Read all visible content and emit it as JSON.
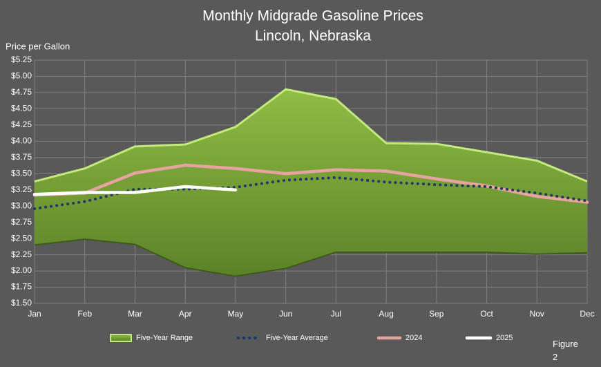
{
  "chart_data": {
    "type": "line",
    "title": "Monthly Midgrade Gasoline Prices",
    "subtitle": "Lincoln, Nebraska",
    "y_label": "Price per Gallon",
    "annotation": "Figure 2",
    "categories": [
      "Jan",
      "Feb",
      "Mar",
      "Apr",
      "May",
      "Jun",
      "Jul",
      "Aug",
      "Sep",
      "Oct",
      "Nov",
      "Dec"
    ],
    "ylim": [
      1.5,
      5.25
    ],
    "yticks": [
      {
        "value": 1.5,
        "label": "$1.50"
      },
      {
        "value": 1.75,
        "label": "$1.75"
      },
      {
        "value": 2,
        "label": "$2.00"
      },
      {
        "value": 2.25,
        "label": "$2.25"
      },
      {
        "value": 2.5,
        "label": "$2.50"
      },
      {
        "value": 2.75,
        "label": "$2.75"
      },
      {
        "value": 3,
        "label": "$3.00"
      },
      {
        "value": 3.25,
        "label": "$3.25"
      },
      {
        "value": 3.5,
        "label": "$3.50"
      },
      {
        "value": 3.75,
        "label": "$3.75"
      },
      {
        "value": 4,
        "label": "$4.00"
      },
      {
        "value": 4.25,
        "label": "$4.25"
      },
      {
        "value": 4.5,
        "label": "$4.50"
      },
      {
        "value": 4.75,
        "label": "$4.75"
      },
      {
        "value": 5,
        "label": "$5.00"
      },
      {
        "value": 5.25,
        "label": "$5.25"
      }
    ],
    "grid": true,
    "series": [
      {
        "name": "Five-Year Range",
        "style": "band",
        "color": "#7fa83c",
        "values": [
          3.38,
          3.58,
          3.92,
          3.95,
          4.22,
          4.8,
          4.65,
          3.97,
          3.96,
          3.83,
          3.7,
          3.38
        ],
        "lower": [
          2.4,
          2.49,
          2.41,
          2.05,
          1.92,
          2.04,
          2.29,
          2.29,
          2.29,
          2.29,
          2.26,
          2.28
        ]
      },
      {
        "name": "Five-Year Average",
        "style": "dotted",
        "color": "#1f3864",
        "values": [
          2.96,
          3.07,
          3.26,
          3.26,
          3.29,
          3.4,
          3.44,
          3.37,
          3.33,
          3.3,
          3.2,
          3.08
        ]
      },
      {
        "name": "2024",
        "style": "solid",
        "color": "#e6a3a0",
        "values": [
          3.17,
          3.2,
          3.51,
          3.63,
          3.58,
          3.5,
          3.56,
          3.54,
          3.42,
          3.31,
          3.15,
          3.06
        ]
      },
      {
        "name": "2025",
        "style": "solid",
        "color": "#ffffff",
        "values": [
          3.18,
          3.21,
          3.21,
          3.3,
          3.25,
          null,
          null,
          null,
          null,
          null,
          null,
          null
        ]
      }
    ]
  }
}
